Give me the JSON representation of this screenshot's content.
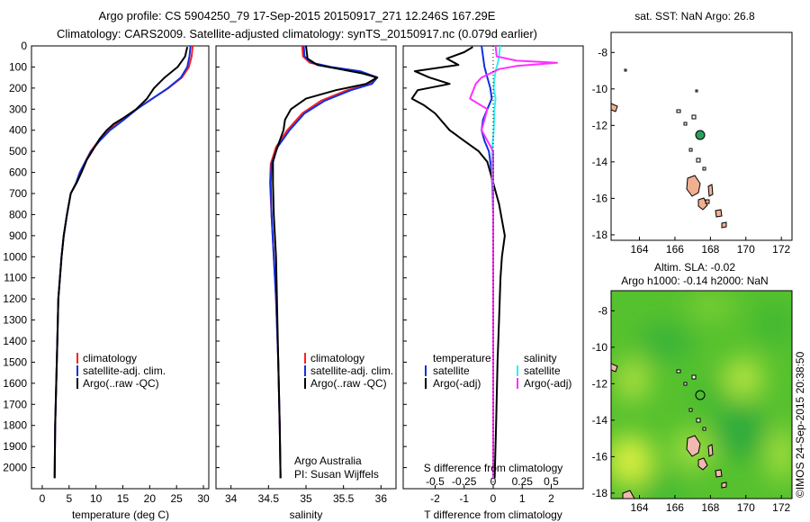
{
  "header": {
    "line1": "Argo profile: CS 5904250_79 17-Sep-2015 20150917_271 12.246S 167.29E",
    "line2": "Climatology: CARS2009. Satellite-adjusted climatology: synTS_20150917.nc (0.079d earlier)"
  },
  "credits": {
    "institution": "Argo Australia",
    "pi": "PI: Susan Wijffels",
    "stamp": "©IMOS 24-Sep-2015 20:38:50"
  },
  "colors": {
    "climatology": "#ff2020",
    "satellite": "#1030e0",
    "argo": "#000000",
    "salinity_sat": "#30f0f0",
    "salinity_argo": "#ff30ff",
    "land": "#f0b090",
    "ocean_green": "#50c030"
  },
  "map_top": {
    "title": "sat. SST: NaN Argo: 26.8",
    "xticks": [
      "164",
      "166",
      "168",
      "170",
      "172"
    ],
    "yticks": [
      "-8",
      "-10",
      "-12",
      "-14",
      "-16",
      "-18"
    ]
  },
  "map_bottom": {
    "title_line1": "Altim. SLA: -0.02",
    "title_line2": "Argo h1000: -0.14 h2000: NaN",
    "xticks": [
      "164",
      "166",
      "168",
      "170",
      "172"
    ],
    "yticks": [
      "-8",
      "-10",
      "-12",
      "-14",
      "-16",
      "-18"
    ]
  },
  "chart_data": [
    {
      "type": "line",
      "name": "temperature",
      "xlabel": "temperature (deg C)",
      "ylabel": "",
      "xlim": [
        -2,
        31
      ],
      "ylim": [
        2100,
        0
      ],
      "xticks": [
        0,
        5,
        10,
        15,
        20,
        25,
        30
      ],
      "yticks": [
        0,
        100,
        200,
        300,
        400,
        500,
        600,
        700,
        800,
        900,
        1000,
        1100,
        1200,
        1300,
        1400,
        1500,
        1600,
        1700,
        1800,
        1900,
        2000
      ],
      "legend": [
        "climatology",
        "satellite-adj. clim.",
        "Argo(..raw -QC)"
      ],
      "series": [
        {
          "name": "climatology",
          "color": "#ff2020",
          "x": [
            28.0,
            27.8,
            27.3,
            26.0,
            23.5,
            20.5,
            17.5,
            15.0,
            12.3,
            10.5,
            9.0,
            8.0,
            7.0,
            6.3,
            5.3,
            4.6,
            4.0,
            3.6,
            3.3,
            3.0,
            2.8,
            2.6,
            2.4,
            2.3
          ],
          "y": [
            0,
            50,
            100,
            150,
            200,
            250,
            300,
            350,
            400,
            450,
            500,
            550,
            600,
            650,
            700,
            800,
            900,
            1000,
            1100,
            1200,
            1400,
            1600,
            1800,
            2050
          ]
        },
        {
          "name": "satellite-adj. clim.",
          "color": "#1030e0",
          "x": [
            27.6,
            27.4,
            27.0,
            25.8,
            23.4,
            20.5,
            17.6,
            15.2,
            12.6,
            10.7,
            9.1,
            8.0,
            7.0,
            6.3,
            5.3,
            4.6,
            4.0,
            3.6,
            3.3,
            3.0,
            2.8,
            2.6,
            2.4,
            2.3
          ],
          "y": [
            0,
            50,
            100,
            150,
            200,
            250,
            300,
            350,
            400,
            450,
            500,
            550,
            600,
            650,
            700,
            800,
            900,
            1000,
            1100,
            1200,
            1400,
            1600,
            1800,
            2050
          ]
        },
        {
          "name": "Argo(..raw -QC)",
          "color": "#000000",
          "x": [
            27.0,
            26.6,
            25.2,
            22.8,
            20.8,
            19.5,
            17.5,
            15.2,
            13.3,
            12.0,
            10.7,
            9.5,
            8.3,
            7.3,
            6.4,
            5.3,
            4.6,
            4.0,
            3.6,
            3.3,
            3.0,
            2.8,
            2.6,
            2.4,
            2.3
          ],
          "y": [
            5,
            50,
            100,
            150,
            200,
            250,
            300,
            340,
            370,
            400,
            440,
            490,
            540,
            600,
            650,
            700,
            800,
            900,
            1000,
            1100,
            1200,
            1400,
            1600,
            1800,
            2050
          ]
        }
      ]
    },
    {
      "type": "line",
      "name": "salinity",
      "xlabel": "salinity",
      "ylabel": "",
      "xlim": [
        33.8,
        36.2
      ],
      "ylim": [
        2100,
        0
      ],
      "xticks": [
        34,
        34.5,
        35,
        35.5,
        36
      ],
      "legend": [
        "climatology",
        "satellite-adj. clim.",
        "Argo(..raw -QC)"
      ],
      "series": [
        {
          "name": "climatology",
          "color": "#ff2020",
          "x": [
            34.95,
            34.96,
            35.05,
            35.3,
            35.7,
            35.93,
            35.85,
            35.55,
            35.2,
            34.95,
            34.75,
            34.6,
            34.53,
            34.52,
            34.54,
            34.57,
            34.6,
            34.63,
            34.65,
            34.66
          ],
          "y": [
            0,
            50,
            80,
            100,
            120,
            150,
            180,
            210,
            260,
            320,
            400,
            480,
            560,
            650,
            800,
            1000,
            1200,
            1500,
            1800,
            2050
          ]
        },
        {
          "name": "satellite-adj. clim.",
          "color": "#1030e0",
          "x": [
            34.97,
            34.98,
            35.08,
            35.33,
            35.72,
            35.95,
            35.88,
            35.6,
            35.25,
            34.98,
            34.78,
            34.62,
            34.54,
            34.53,
            34.54,
            34.57,
            34.6,
            34.63,
            34.65,
            34.66
          ],
          "y": [
            0,
            50,
            80,
            100,
            120,
            150,
            180,
            210,
            260,
            320,
            400,
            480,
            560,
            650,
            800,
            1000,
            1200,
            1500,
            1800,
            2050
          ]
        },
        {
          "name": "Argo(..raw -QC)",
          "color": "#000000",
          "x": [
            35.0,
            35.02,
            35.15,
            35.45,
            35.75,
            35.95,
            35.8,
            35.4,
            35.0,
            34.8,
            34.72,
            34.7,
            34.65,
            34.6,
            34.56,
            34.56,
            34.57,
            34.6,
            34.63,
            34.65,
            34.66
          ],
          "y": [
            0,
            60,
            90,
            110,
            130,
            150,
            180,
            210,
            250,
            300,
            350,
            400,
            450,
            500,
            550,
            650,
            800,
            1000,
            1500,
            1800,
            2050
          ]
        }
      ]
    },
    {
      "type": "line",
      "name": "difference from climatology",
      "xlabel": "T difference from climatology",
      "xlabel_top": "S difference from climatology",
      "ylim": [
        2100,
        0
      ],
      "xlim_T": [
        -3.1,
        3.1
      ],
      "xlim_S": [
        -0.775,
        0.775
      ],
      "xticks_T": [
        "-2",
        "-1",
        "0",
        "1",
        "2"
      ],
      "xticks_S": [
        "-0.5",
        "-0.25",
        "0",
        "0.25",
        "0.5"
      ],
      "legend_temperature": {
        "title": "temperature",
        "items": [
          "satellite",
          "Argo(-adj)"
        ]
      },
      "legend_salinity": {
        "title": "salinity",
        "items": [
          "satellite",
          "Argo(-adj)"
        ]
      },
      "series": [
        {
          "name": "temperature satellite",
          "color": "#1030e0",
          "x_units": "T",
          "x": [
            -0.4,
            -0.35,
            -0.3,
            -0.2,
            -0.1,
            -0.05,
            -0.2,
            -0.35,
            -0.4,
            -0.3,
            -0.15,
            -0.1,
            -0.05,
            0,
            0,
            0
          ],
          "y": [
            0,
            50,
            100,
            150,
            200,
            250,
            300,
            350,
            400,
            450,
            500,
            550,
            600,
            800,
            1200,
            2050
          ]
        },
        {
          "name": "temperature Argo(-adj)",
          "color": "#000000",
          "x_units": "T",
          "x": [
            -0.7,
            -1.0,
            -1.6,
            -1.2,
            -2.7,
            -2.2,
            -1.5,
            -2.6,
            -2.8,
            -2.4,
            -2.0,
            -1.5,
            -1.0,
            -0.5,
            -0.2,
            -0.1,
            0.2,
            0.4,
            0.3,
            0.25,
            0.2,
            0.15,
            0.1,
            0.05
          ],
          "y": [
            5,
            30,
            60,
            90,
            120,
            150,
            180,
            210,
            250,
            280,
            320,
            400,
            450,
            500,
            550,
            600,
            750,
            900,
            1000,
            1100,
            1300,
            1500,
            1800,
            2050
          ]
        },
        {
          "name": "salinity satellite",
          "color": "#30f0f0",
          "x_units": "S",
          "x": [
            0.06,
            0.05,
            0.04,
            0.02,
            0.01,
            0.005,
            0.02,
            0.01,
            0.005,
            -0.01,
            0,
            0,
            0
          ],
          "y": [
            0,
            50,
            80,
            120,
            160,
            200,
            250,
            300,
            400,
            500,
            800,
            1500,
            2050
          ]
        },
        {
          "name": "salinity Argo(-adj)",
          "color": "#ff30ff",
          "x_units": "S",
          "x": [
            0.02,
            0.03,
            0.2,
            0.55,
            0.2,
            0.05,
            -0.1,
            -0.15,
            -0.2,
            -0.05,
            -0.1,
            0,
            0,
            0,
            0,
            0
          ],
          "y": [
            0,
            50,
            70,
            80,
            95,
            110,
            150,
            180,
            250,
            300,
            400,
            500,
            700,
            1000,
            1500,
            2050
          ]
        }
      ]
    }
  ]
}
